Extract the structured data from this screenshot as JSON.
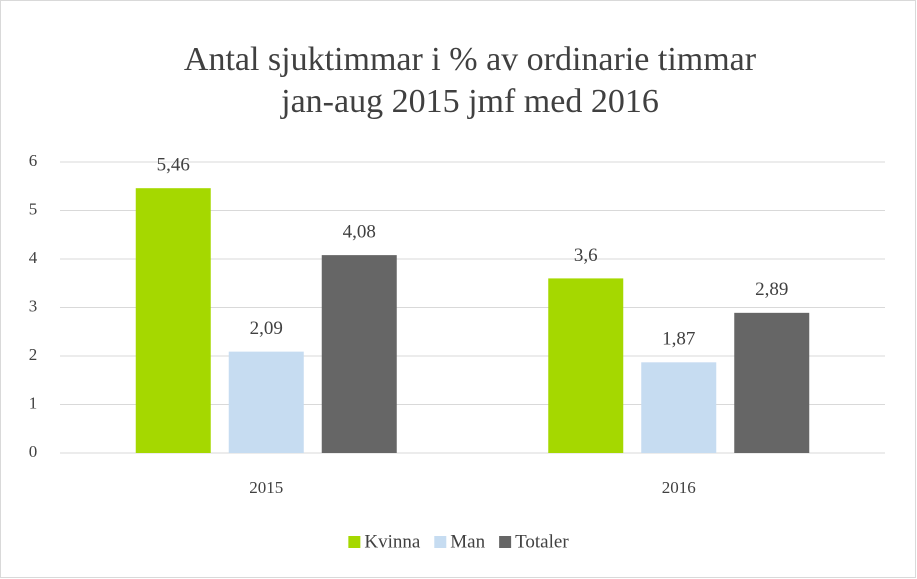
{
  "chart_data": {
    "type": "bar",
    "title": [
      "Antal sjuktimmar i % av ordinarie timmar",
      "jan-aug 2015 jmf med 2016"
    ],
    "categories": [
      "2015",
      "2016"
    ],
    "series": [
      {
        "name": "Kvinna",
        "color": "#a5d800",
        "values": [
          5.46,
          3.6
        ],
        "value_labels": [
          "5,46",
          "3,6"
        ]
      },
      {
        "name": "Man",
        "color": "#c6dcf1",
        "values": [
          2.09,
          1.87
        ],
        "value_labels": [
          "2,09",
          "1,87"
        ]
      },
      {
        "name": "Totaler",
        "color": "#666666",
        "values": [
          4.08,
          2.89
        ],
        "value_labels": [
          "4,08",
          "2,89"
        ]
      }
    ],
    "ylim": [
      0,
      6
    ],
    "yticks": [
      0,
      1,
      2,
      3,
      4,
      5,
      6
    ],
    "grid": true,
    "legend": "bottom"
  }
}
